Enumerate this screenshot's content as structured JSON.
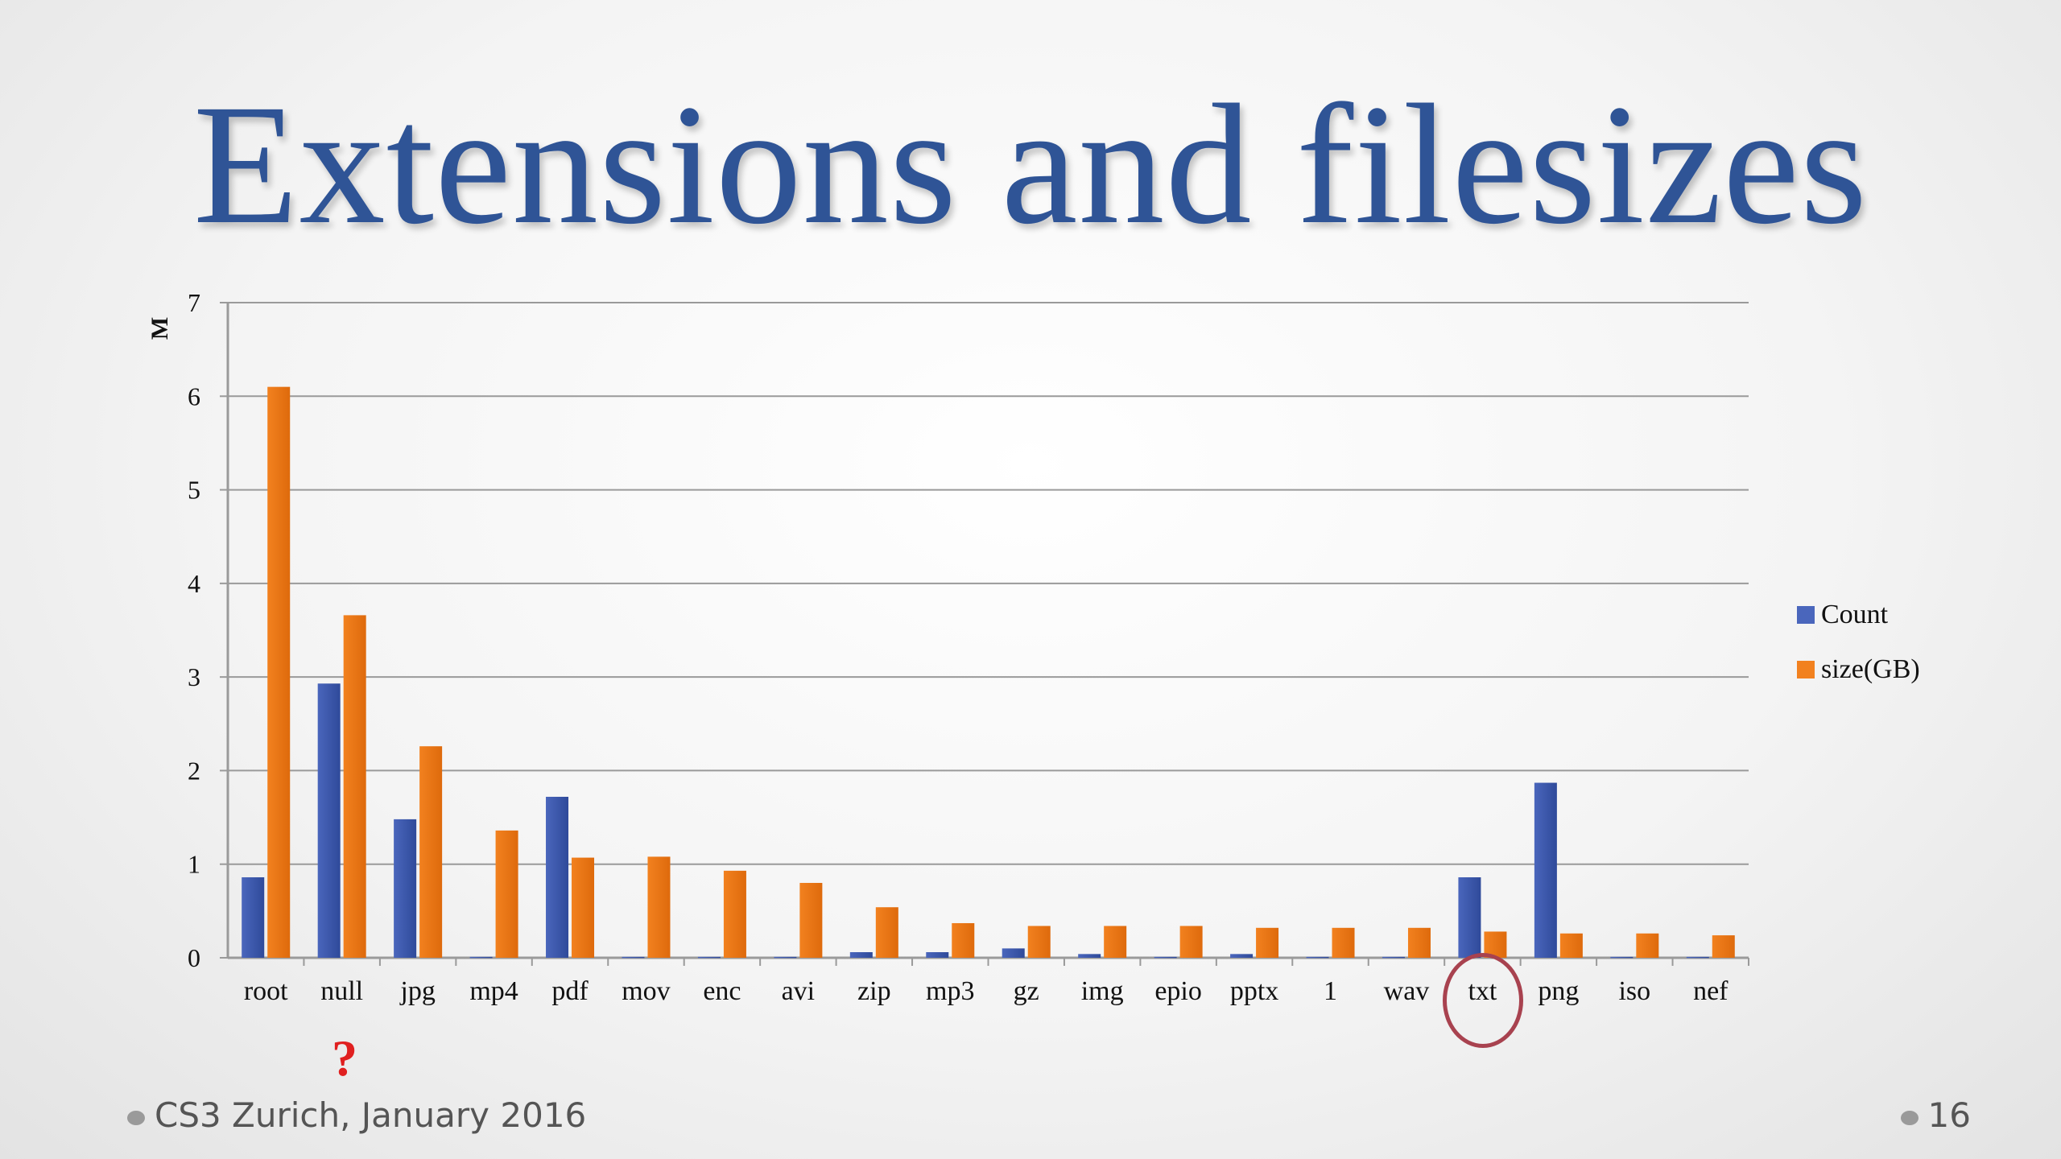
{
  "slide": {
    "title": "Extensions and filesizes",
    "footer_text": "CS3 Zurich, January 2016",
    "page_number": "16",
    "annotation_mark": "?"
  },
  "colors": {
    "title": "#2f5496",
    "count": "#4a66bc",
    "size": "#f2811f",
    "grid": "#9a9a9a",
    "circle": "#a8424f",
    "question": "#e02020"
  },
  "chart_data": {
    "type": "bar",
    "ylabel": "M",
    "ylim": [
      0,
      7
    ],
    "yticks": [
      0,
      1,
      2,
      3,
      4,
      5,
      6,
      7
    ],
    "grid": true,
    "legend_position": "right",
    "categories": [
      "root",
      "null",
      "jpg",
      "mp4",
      "pdf",
      "mov",
      "enc",
      "avi",
      "zip",
      "mp3",
      "gz",
      "img",
      "epio",
      "pptx",
      "1",
      "wav",
      "txt",
      "png",
      "iso",
      "nef"
    ],
    "series": [
      {
        "name": "Count",
        "values": [
          0.86,
          2.93,
          1.48,
          0.01,
          1.72,
          0.01,
          0.01,
          0.01,
          0.06,
          0.06,
          0.1,
          0.04,
          0.01,
          0.04,
          0.01,
          0.01,
          0.86,
          1.87,
          0.01,
          0.01
        ]
      },
      {
        "name": "size(GB)",
        "values": [
          6.1,
          3.66,
          2.26,
          1.36,
          1.07,
          1.08,
          0.93,
          0.8,
          0.54,
          0.37,
          0.34,
          0.34,
          0.34,
          0.32,
          0.32,
          0.32,
          0.28,
          0.26,
          0.26,
          0.24
        ]
      }
    ]
  }
}
